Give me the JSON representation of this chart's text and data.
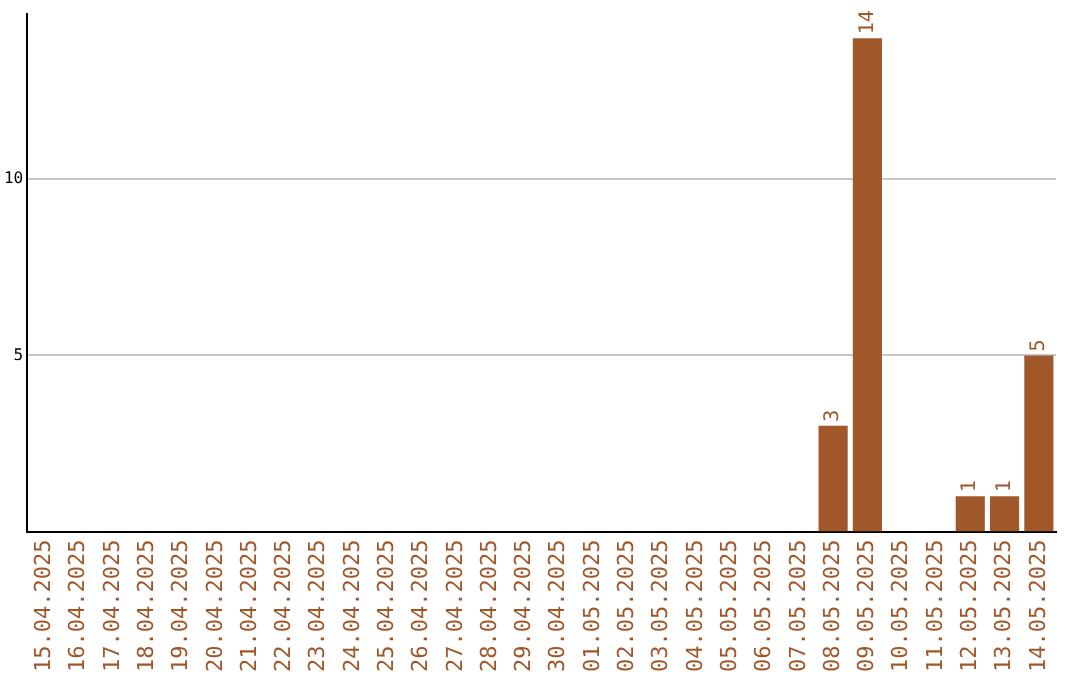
{
  "chart_data": {
    "type": "bar",
    "categories": [
      "15.04.2025",
      "16.04.2025",
      "17.04.2025",
      "18.04.2025",
      "19.04.2025",
      "20.04.2025",
      "21.04.2025",
      "22.04.2025",
      "23.04.2025",
      "24.04.2025",
      "25.04.2025",
      "26.04.2025",
      "27.04.2025",
      "28.04.2025",
      "29.04.2025",
      "30.04.2025",
      "01.05.2025",
      "02.05.2025",
      "03.05.2025",
      "04.05.2025",
      "05.05.2025",
      "06.05.2025",
      "07.05.2025",
      "08.05.2025",
      "09.05.2025",
      "10.05.2025",
      "11.05.2025",
      "12.05.2025",
      "13.05.2025",
      "14.05.2025"
    ],
    "values": [
      0,
      0,
      0,
      0,
      0,
      0,
      0,
      0,
      0,
      0,
      0,
      0,
      0,
      0,
      0,
      0,
      0,
      0,
      0,
      0,
      0,
      0,
      0,
      3,
      14,
      0,
      0,
      1,
      1,
      5
    ],
    "value_labels": [
      null,
      null,
      null,
      null,
      null,
      null,
      null,
      null,
      null,
      null,
      null,
      null,
      null,
      null,
      null,
      null,
      null,
      null,
      null,
      null,
      null,
      null,
      null,
      "3",
      "14",
      null,
      null,
      "1",
      "1",
      "5"
    ],
    "color": "#a0582a",
    "ylim": [
      0,
      14.7
    ],
    "yticks": [
      5,
      10
    ],
    "grid": "y",
    "legend": false
  }
}
